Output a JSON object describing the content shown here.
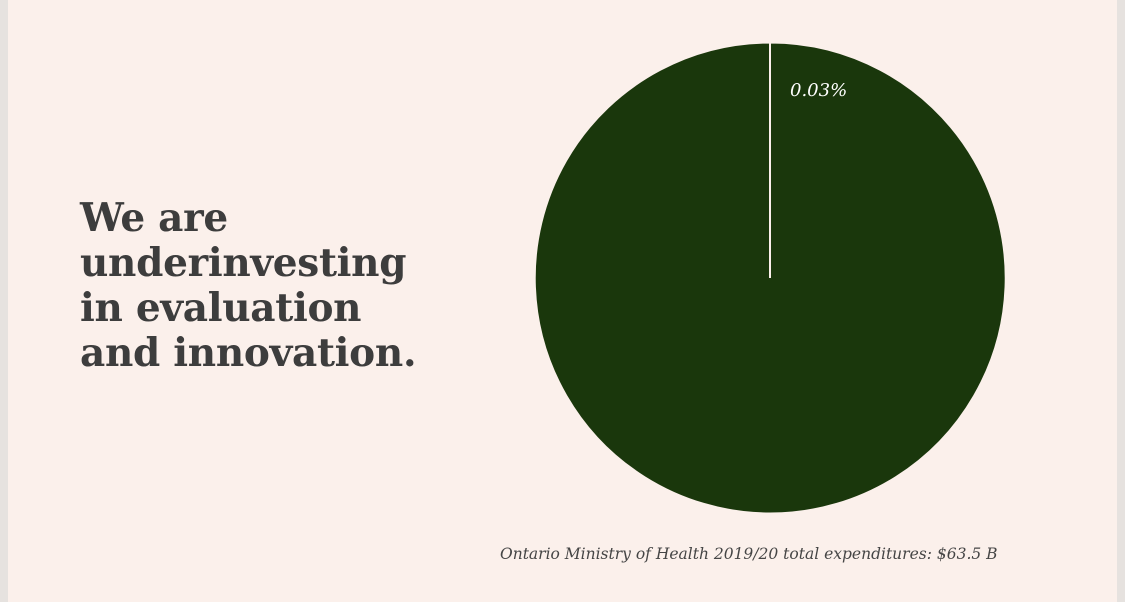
{
  "slide": {
    "headline_lines": [
      "We are",
      "underinvesting",
      "in evaluation",
      "and innovation."
    ],
    "caption": "Ontario Ministry of Health 2019/20 total expenditures: $63.5 B"
  },
  "chart_data": {
    "type": "pie",
    "title": "",
    "slices": [
      {
        "label": "0.03%",
        "value": 0.03,
        "color": "#fbf0eb",
        "labeled": true
      },
      {
        "label": "",
        "value": 99.97,
        "color": "#1a370c",
        "labeled": false
      }
    ],
    "start_angle": "12 o'clock",
    "direction": "clockwise",
    "slice_border_color": "#fbf0eb",
    "legend": "none"
  },
  "colors": {
    "background": "#fbf0eb",
    "frame": "#e6e2df",
    "pie_fill": "#1a370c",
    "headline_text": "#3d3d3d",
    "caption_text": "#454545",
    "label_text": "#ffffff"
  }
}
